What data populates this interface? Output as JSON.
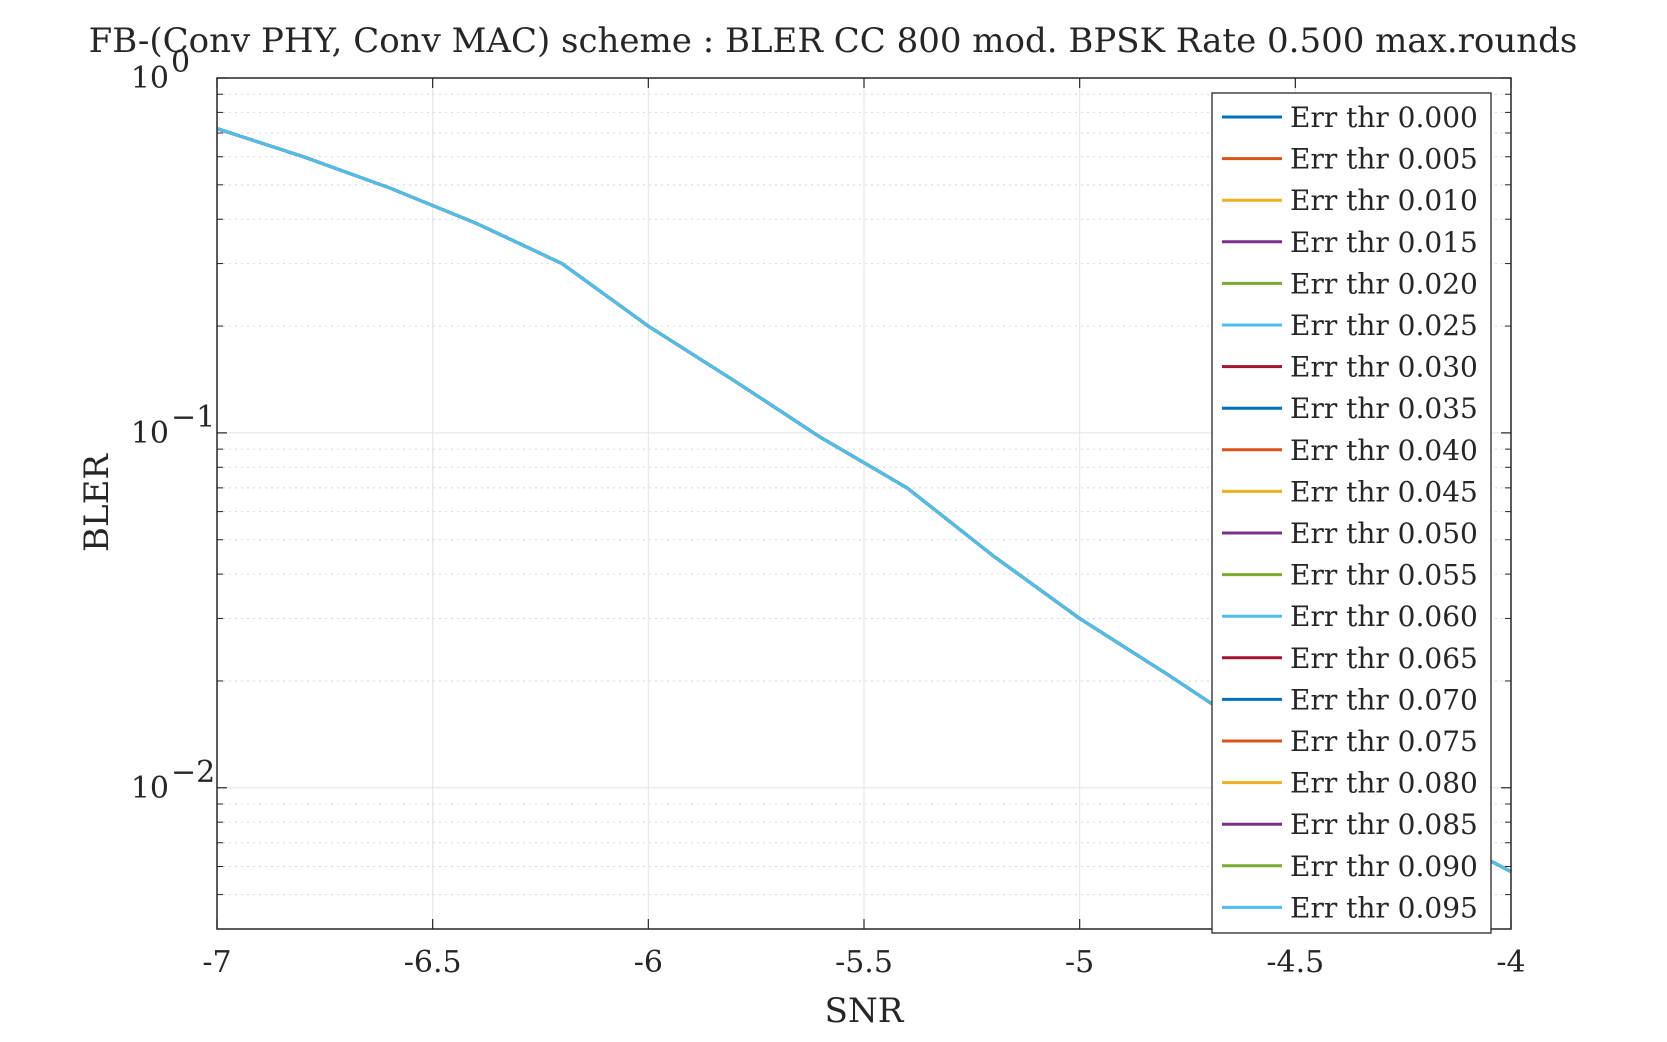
{
  "chart_data": {
    "type": "line",
    "title": "FB-(Conv PHY, Conv MAC) scheme : BLER CC 800 mod. BPSK Rate 0.500 max.rounds",
    "xlabel": "SNR",
    "ylabel": "BLER",
    "xlim": [
      -7,
      -4
    ],
    "ylim": [
      0.004,
      1
    ],
    "yscale": "log",
    "grid": true,
    "minor_grid": true,
    "legend_position": "right",
    "x_ticks": [
      {
        "value": -7,
        "label": "-7"
      },
      {
        "value": -6.5,
        "label": "-6.5"
      },
      {
        "value": -6,
        "label": "-6"
      },
      {
        "value": -5.5,
        "label": "-5.5"
      },
      {
        "value": -5,
        "label": "-5"
      },
      {
        "value": -4.5,
        "label": "-4.5"
      },
      {
        "value": -4,
        "label": "-4"
      }
    ],
    "y_ticks": [
      {
        "value": 1,
        "base": "10",
        "exp": "0"
      },
      {
        "value": 0.1,
        "base": "10",
        "exp": "−1"
      },
      {
        "value": 0.01,
        "base": "10",
        "exp": "−2"
      }
    ],
    "x": [
      -7.0,
      -6.8,
      -6.6,
      -6.4,
      -6.2,
      -6.0,
      -5.8,
      -5.6,
      -5.4,
      -5.2,
      -5.0,
      -4.8,
      -4.6,
      -4.4,
      -4.2,
      -4.0
    ],
    "series": [
      {
        "name": "Err thr 0.000",
        "color": "#0072BD",
        "values": [
          0.72,
          0.6,
          0.49,
          0.39,
          0.3,
          0.2,
          0.14,
          0.097,
          0.07,
          0.045,
          0.03,
          0.021,
          0.0145,
          0.0105,
          0.0078,
          0.0058
        ]
      },
      {
        "name": "Err thr 0.005",
        "color": "#D95319",
        "values": [
          0.72,
          0.6,
          0.49,
          0.39,
          0.3,
          0.2,
          0.14,
          0.097,
          0.07,
          0.045,
          0.03,
          0.021,
          0.0145,
          0.0105,
          0.0078,
          0.0058
        ]
      },
      {
        "name": "Err thr 0.010",
        "color": "#EDB120",
        "values": [
          0.72,
          0.6,
          0.49,
          0.39,
          0.3,
          0.2,
          0.14,
          0.097,
          0.07,
          0.045,
          0.03,
          0.021,
          0.0145,
          0.0105,
          0.0078,
          0.0058
        ]
      },
      {
        "name": "Err thr 0.015",
        "color": "#7E2F8E",
        "values": [
          0.72,
          0.6,
          0.49,
          0.39,
          0.3,
          0.2,
          0.14,
          0.097,
          0.07,
          0.045,
          0.03,
          0.021,
          0.0145,
          0.0105,
          0.0078,
          0.0058
        ]
      },
      {
        "name": "Err thr 0.020",
        "color": "#77AC30",
        "values": [
          0.72,
          0.6,
          0.49,
          0.39,
          0.3,
          0.2,
          0.14,
          0.097,
          0.07,
          0.045,
          0.03,
          0.021,
          0.0145,
          0.0105,
          0.0078,
          0.0058
        ]
      },
      {
        "name": "Err thr 0.025",
        "color": "#4DBEEE",
        "values": [
          0.72,
          0.6,
          0.49,
          0.39,
          0.3,
          0.2,
          0.14,
          0.097,
          0.07,
          0.045,
          0.03,
          0.021,
          0.0145,
          0.0105,
          0.0078,
          0.0058
        ]
      },
      {
        "name": "Err thr 0.030",
        "color": "#A2142F",
        "values": [
          0.72,
          0.6,
          0.49,
          0.39,
          0.3,
          0.2,
          0.14,
          0.097,
          0.07,
          0.045,
          0.03,
          0.021,
          0.0145,
          0.0105,
          0.0078,
          0.0058
        ]
      },
      {
        "name": "Err thr 0.035",
        "color": "#0072BD",
        "values": [
          0.72,
          0.6,
          0.49,
          0.39,
          0.3,
          0.2,
          0.14,
          0.097,
          0.07,
          0.045,
          0.03,
          0.021,
          0.0145,
          0.0105,
          0.0078,
          0.0058
        ]
      },
      {
        "name": "Err thr 0.040",
        "color": "#D95319",
        "values": [
          0.72,
          0.6,
          0.49,
          0.39,
          0.3,
          0.2,
          0.14,
          0.097,
          0.07,
          0.045,
          0.03,
          0.021,
          0.0145,
          0.0105,
          0.0078,
          0.0058
        ]
      },
      {
        "name": "Err thr 0.045",
        "color": "#EDB120",
        "values": [
          0.72,
          0.6,
          0.49,
          0.39,
          0.3,
          0.2,
          0.14,
          0.097,
          0.07,
          0.045,
          0.03,
          0.021,
          0.0145,
          0.0105,
          0.0078,
          0.0058
        ]
      },
      {
        "name": "Err thr 0.050",
        "color": "#7E2F8E",
        "values": [
          0.72,
          0.6,
          0.49,
          0.39,
          0.3,
          0.2,
          0.14,
          0.097,
          0.07,
          0.045,
          0.03,
          0.021,
          0.0145,
          0.0105,
          0.0078,
          0.0058
        ]
      },
      {
        "name": "Err thr 0.055",
        "color": "#77AC30",
        "values": [
          0.72,
          0.6,
          0.49,
          0.39,
          0.3,
          0.2,
          0.14,
          0.097,
          0.07,
          0.045,
          0.03,
          0.021,
          0.0145,
          0.0105,
          0.0078,
          0.0058
        ]
      },
      {
        "name": "Err thr 0.060",
        "color": "#4DBEEE",
        "values": [
          0.72,
          0.6,
          0.49,
          0.39,
          0.3,
          0.2,
          0.14,
          0.097,
          0.07,
          0.045,
          0.03,
          0.021,
          0.0145,
          0.0105,
          0.0078,
          0.0058
        ]
      },
      {
        "name": "Err thr 0.065",
        "color": "#A2142F",
        "values": [
          0.72,
          0.6,
          0.49,
          0.39,
          0.3,
          0.2,
          0.14,
          0.097,
          0.07,
          0.045,
          0.03,
          0.021,
          0.0145,
          0.0105,
          0.0078,
          0.0058
        ]
      },
      {
        "name": "Err thr 0.070",
        "color": "#0072BD",
        "values": [
          0.72,
          0.6,
          0.49,
          0.39,
          0.3,
          0.2,
          0.14,
          0.097,
          0.07,
          0.045,
          0.03,
          0.021,
          0.0145,
          0.0105,
          0.0078,
          0.0058
        ]
      },
      {
        "name": "Err thr 0.075",
        "color": "#D95319",
        "values": [
          0.72,
          0.6,
          0.49,
          0.39,
          0.3,
          0.2,
          0.14,
          0.097,
          0.07,
          0.045,
          0.03,
          0.021,
          0.0145,
          0.0105,
          0.0078,
          0.0058
        ]
      },
      {
        "name": "Err thr 0.080",
        "color": "#EDB120",
        "values": [
          0.72,
          0.6,
          0.49,
          0.39,
          0.3,
          0.2,
          0.14,
          0.097,
          0.07,
          0.045,
          0.03,
          0.021,
          0.0145,
          0.0105,
          0.0078,
          0.0058
        ]
      },
      {
        "name": "Err thr 0.085",
        "color": "#7E2F8E",
        "values": [
          0.72,
          0.6,
          0.49,
          0.39,
          0.3,
          0.2,
          0.14,
          0.097,
          0.07,
          0.045,
          0.03,
          0.021,
          0.0145,
          0.0105,
          0.0078,
          0.0058
        ]
      },
      {
        "name": "Err thr 0.090",
        "color": "#77AC30",
        "values": [
          0.72,
          0.6,
          0.49,
          0.39,
          0.3,
          0.2,
          0.14,
          0.097,
          0.07,
          0.045,
          0.03,
          0.021,
          0.0145,
          0.0105,
          0.0078,
          0.0058
        ]
      },
      {
        "name": "Err thr 0.095",
        "color": "#4DBEEE",
        "values": [
          0.72,
          0.6,
          0.49,
          0.39,
          0.3,
          0.2,
          0.14,
          0.097,
          0.07,
          0.045,
          0.03,
          0.021,
          0.0145,
          0.0105,
          0.0078,
          0.0058
        ]
      }
    ]
  }
}
